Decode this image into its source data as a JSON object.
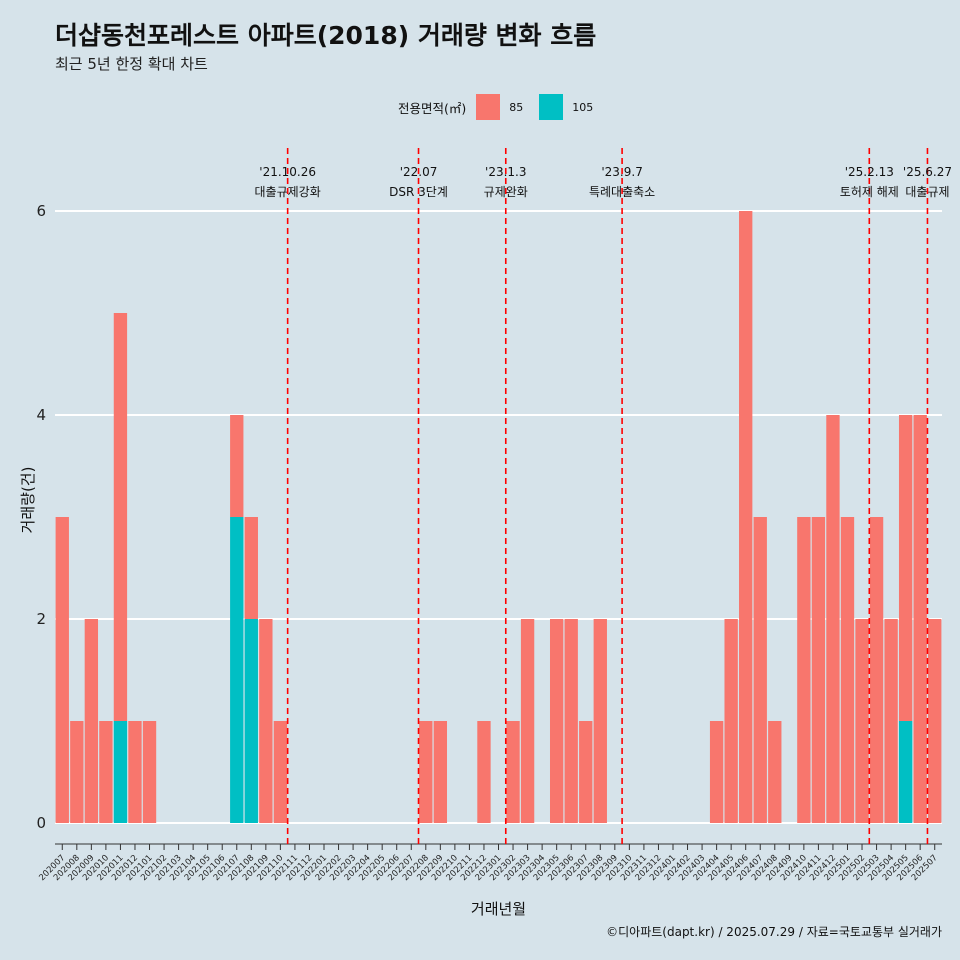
{
  "header": {
    "title": "더샵동천포레스트 아파트(2018) 거래량 변화 흐름",
    "subtitle": "최근 5년 한정 확대 차트"
  },
  "legend": {
    "title": "전용면적(㎡)",
    "items": [
      {
        "label": "85",
        "color": "#f8766d"
      },
      {
        "label": "105",
        "color": "#00bfc4"
      }
    ]
  },
  "caption": "©디아파트(dapt.kr) / 2025.07.29 / 자료=국토교통부 실거래가",
  "chart_data": {
    "type": "bar",
    "xlabel": "거래년월",
    "ylabel": "거래량(건)",
    "ylim": [
      0,
      6
    ],
    "yticks": [
      0,
      2,
      4,
      6
    ],
    "grid": true,
    "legend_position": "top",
    "categories": [
      "202007",
      "202008",
      "202009",
      "202010",
      "202011",
      "202012",
      "202101",
      "202102",
      "202103",
      "202104",
      "202105",
      "202106",
      "202107",
      "202108",
      "202109",
      "202110",
      "202111",
      "202112",
      "202201",
      "202202",
      "202203",
      "202204",
      "202205",
      "202206",
      "202207",
      "202208",
      "202209",
      "202210",
      "202211",
      "202212",
      "202301",
      "202302",
      "202303",
      "202304",
      "202305",
      "202306",
      "202307",
      "202308",
      "202309",
      "202310",
      "202311",
      "202312",
      "202401",
      "202402",
      "202403",
      "202404",
      "202405",
      "202406",
      "202407",
      "202408",
      "202409",
      "202410",
      "202411",
      "202412",
      "202501",
      "202502",
      "202503",
      "202504",
      "202505",
      "202506",
      "202507"
    ],
    "series": [
      {
        "name": "85",
        "color": "#f8766d",
        "values": [
          3,
          1,
          2,
          1,
          4,
          1,
          1,
          0,
          0,
          0,
          0,
          0,
          1,
          1,
          2,
          1,
          0,
          0,
          0,
          0,
          0,
          0,
          0,
          0,
          0,
          1,
          1,
          0,
          0,
          1,
          0,
          1,
          2,
          0,
          2,
          2,
          1,
          2,
          0,
          0,
          0,
          0,
          0,
          0,
          0,
          1,
          2,
          6,
          3,
          1,
          0,
          3,
          3,
          4,
          3,
          2,
          3,
          2,
          3,
          4,
          2
        ]
      },
      {
        "name": "105",
        "color": "#00bfc4",
        "values": [
          0,
          0,
          0,
          0,
          1,
          0,
          0,
          0,
          0,
          0,
          0,
          0,
          3,
          2,
          0,
          0,
          0,
          0,
          0,
          0,
          0,
          0,
          0,
          0,
          0,
          0,
          0,
          0,
          0,
          0,
          0,
          0,
          0,
          0,
          0,
          0,
          0,
          0,
          0,
          0,
          0,
          0,
          0,
          0,
          0,
          0,
          0,
          0,
          0,
          0,
          0,
          0,
          0,
          0,
          0,
          0,
          0,
          0,
          1,
          0,
          0
        ]
      }
    ],
    "annotations": [
      {
        "at": "202110",
        "date": "'21.10.26",
        "text": "대출규제강화",
        "color": "#ff0000"
      },
      {
        "at": "202207",
        "date": "'22.07",
        "text": "DSR 3단계",
        "color": "#ff0000"
      },
      {
        "at": "202301",
        "date": "'23.1.3",
        "text": "규제완화",
        "color": "#ff0000"
      },
      {
        "at": "202309",
        "date": "'23.9.7",
        "text": "특례대출축소",
        "color": "#ff0000"
      },
      {
        "at": "202502",
        "date": "'25.2.13",
        "text": "토허제 해제",
        "color": "#ff0000"
      },
      {
        "at": "202506",
        "date": "'25.6.27",
        "text": "대출규제",
        "color": "#ff0000"
      }
    ]
  }
}
